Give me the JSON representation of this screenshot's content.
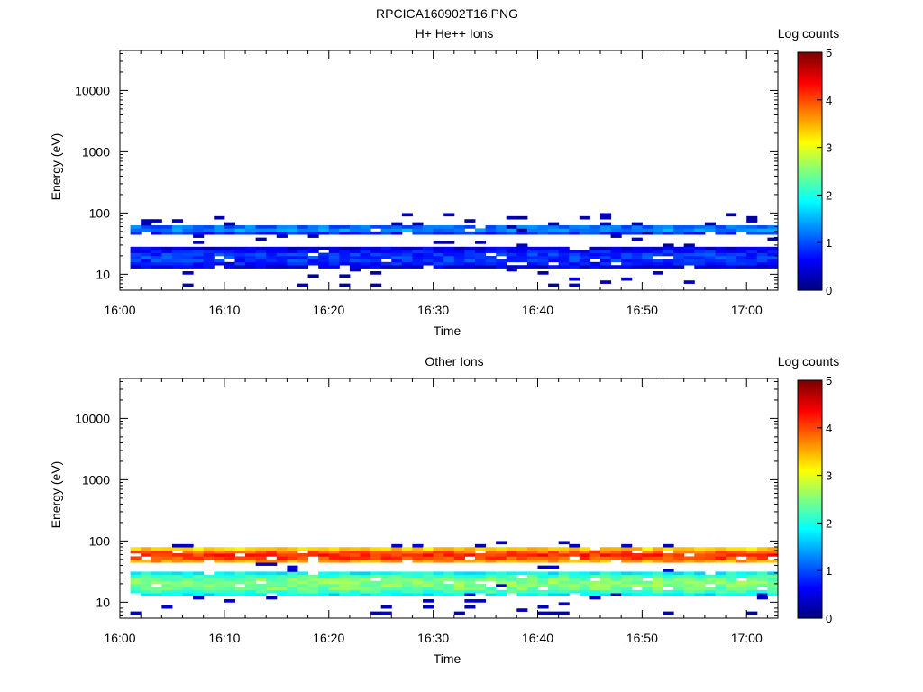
{
  "figure": {
    "title": "RPCICA160902T16.PNG"
  },
  "chart_data": [
    {
      "type": "heatmap",
      "title": "H+ He++ Ions",
      "xlabel": "Time",
      "ylabel": "Energy (eV)",
      "xlim": [
        "16:00",
        "17:03"
      ],
      "xticks": [
        "16:00",
        "16:10",
        "16:20",
        "16:30",
        "16:40",
        "16:50",
        "17:00"
      ],
      "ylim": [
        5.5,
        45000
      ],
      "yscale": "log",
      "yticks": [
        "10",
        "100",
        "1000",
        "10000"
      ],
      "colorbar": {
        "label": "Log counts",
        "range": [
          0,
          5
        ],
        "ticks": [
          "0",
          "1",
          "2",
          "3",
          "4",
          "5"
        ]
      },
      "bands": [
        {
          "energy_low": 44,
          "energy_high": 60,
          "log_counts_mean": 1.1,
          "coverage": "continuous"
        },
        {
          "energy_low": 12,
          "energy_high": 26,
          "log_counts_mean": 0.7,
          "coverage": "continuous"
        },
        {
          "energy_low": 6,
          "energy_high": 95,
          "log_counts_mean": 0.1,
          "coverage": "sparse"
        }
      ]
    },
    {
      "type": "heatmap",
      "title": "Other Ions",
      "xlabel": "Time",
      "ylabel": "Energy (eV)",
      "xlim": [
        "16:00",
        "17:03"
      ],
      "xticks": [
        "16:00",
        "16:10",
        "16:20",
        "16:30",
        "16:40",
        "16:50",
        "17:00"
      ],
      "ylim": [
        5.5,
        45000
      ],
      "yscale": "log",
      "yticks": [
        "10",
        "100",
        "1000",
        "10000"
      ],
      "colorbar": {
        "label": "Log counts",
        "range": [
          0,
          5
        ],
        "ticks": [
          "0",
          "1",
          "2",
          "3",
          "4",
          "5"
        ]
      },
      "bands": [
        {
          "energy_low": 42,
          "energy_high": 72,
          "log_counts_mean": 3.8,
          "coverage": "continuous"
        },
        {
          "energy_low": 12,
          "energy_high": 30,
          "log_counts_mean": 2.2,
          "coverage": "continuous"
        },
        {
          "energy_low": 6,
          "energy_high": 95,
          "log_counts_mean": 0.2,
          "coverage": "sparse"
        }
      ]
    }
  ]
}
